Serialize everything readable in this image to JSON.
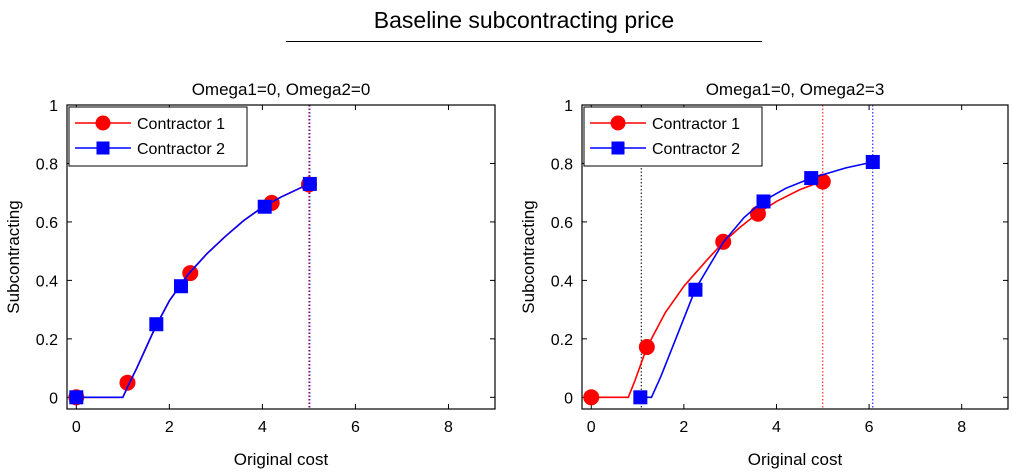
{
  "figure": {
    "title": "Baseline subcontracting price"
  },
  "colors": {
    "contractor_1": "#ff0000",
    "contractor_2": "#0000ff",
    "axes": "#000000"
  },
  "chart_data": [
    {
      "type": "line",
      "title": "Omega1=0, Omega2=0",
      "xlabel": "Original cost",
      "ylabel": "Subcontracting",
      "xlim": [
        -0.2,
        9
      ],
      "ylim": [
        -0.04,
        1
      ],
      "xticks": [
        0,
        2,
        4,
        6,
        8
      ],
      "yticks": [
        0,
        0.2,
        0.4,
        0.6,
        0.8,
        1
      ],
      "ytick_labels": [
        "0",
        "0.2",
        "0.4",
        "0.6",
        "0.8",
        "1"
      ],
      "grid": false,
      "legend_position": "top-left",
      "vlines": [
        {
          "x": 5.0,
          "color": "#ff0000"
        },
        {
          "x": 5.02,
          "color": "#0000ff"
        }
      ],
      "series": [
        {
          "name": "Contractor 1",
          "color": "#ff0000",
          "marker": "circle",
          "line": [
            [
              0,
              0
            ],
            [
              0.5,
              0
            ],
            [
              1.0,
              0
            ],
            [
              1.1,
              0.035
            ],
            [
              1.3,
              0.1
            ],
            [
              1.5,
              0.17
            ],
            [
              1.7,
              0.24
            ],
            [
              2.0,
              0.33
            ],
            [
              2.4,
              0.42
            ],
            [
              2.8,
              0.49
            ],
            [
              3.2,
              0.55
            ],
            [
              3.6,
              0.605
            ],
            [
              4.0,
              0.65
            ],
            [
              4.4,
              0.685
            ],
            [
              4.8,
              0.715
            ],
            [
              5.0,
              0.73
            ]
          ],
          "markers": [
            [
              0,
              0
            ],
            [
              1.1,
              0.05
            ],
            [
              2.45,
              0.425
            ],
            [
              4.2,
              0.665
            ],
            [
              5.0,
              0.728
            ]
          ]
        },
        {
          "name": "Contractor 2",
          "color": "#0000ff",
          "marker": "square",
          "line": [
            [
              0,
              0
            ],
            [
              0.5,
              0
            ],
            [
              1.0,
              0
            ],
            [
              1.1,
              0.035
            ],
            [
              1.3,
              0.1
            ],
            [
              1.5,
              0.17
            ],
            [
              1.7,
              0.24
            ],
            [
              2.0,
              0.33
            ],
            [
              2.4,
              0.42
            ],
            [
              2.8,
              0.49
            ],
            [
              3.2,
              0.55
            ],
            [
              3.6,
              0.605
            ],
            [
              4.0,
              0.65
            ],
            [
              4.4,
              0.685
            ],
            [
              4.8,
              0.715
            ],
            [
              5.0,
              0.73
            ]
          ],
          "markers": [
            [
              0,
              0
            ],
            [
              1.72,
              0.25
            ],
            [
              2.25,
              0.38
            ],
            [
              4.05,
              0.652
            ],
            [
              5.02,
              0.73
            ]
          ]
        }
      ]
    },
    {
      "type": "line",
      "title": "Omega1=0, Omega2=3",
      "xlabel": "Original cost",
      "ylabel": "Subcontracting",
      "xlim": [
        -0.2,
        9
      ],
      "ylim": [
        -0.04,
        1
      ],
      "xticks": [
        0,
        2,
        4,
        6,
        8
      ],
      "yticks": [
        0,
        0.2,
        0.4,
        0.6,
        0.8,
        1
      ],
      "ytick_labels": [
        "0",
        "0.2",
        "0.4",
        "0.6",
        "0.8",
        "1"
      ],
      "grid": false,
      "legend_position": "top-left",
      "vlines": [
        {
          "x": 1.08,
          "color": "#000000"
        },
        {
          "x": 5.0,
          "color": "#ff0000"
        },
        {
          "x": 6.08,
          "color": "#0000ff"
        }
      ],
      "series": [
        {
          "name": "Contractor 1",
          "color": "#ff0000",
          "marker": "circle",
          "line": [
            [
              0,
              0
            ],
            [
              0.5,
              0
            ],
            [
              0.8,
              0
            ],
            [
              0.95,
              0.06
            ],
            [
              1.2,
              0.17
            ],
            [
              1.6,
              0.29
            ],
            [
              2.0,
              0.38
            ],
            [
              2.5,
              0.47
            ],
            [
              2.85,
              0.53
            ],
            [
              3.2,
              0.58
            ],
            [
              3.6,
              0.63
            ],
            [
              4.0,
              0.67
            ],
            [
              4.5,
              0.71
            ],
            [
              5.0,
              0.74
            ]
          ],
          "markers": [
            [
              0,
              0
            ],
            [
              1.2,
              0.172
            ],
            [
              2.85,
              0.532
            ],
            [
              3.6,
              0.628
            ],
            [
              5.0,
              0.738
            ]
          ]
        },
        {
          "name": "Contractor 2",
          "color": "#0000ff",
          "marker": "square",
          "line": [
            [
              1.06,
              0
            ],
            [
              1.3,
              0
            ],
            [
              1.5,
              0.07
            ],
            [
              1.8,
              0.19
            ],
            [
              2.25,
              0.37
            ],
            [
              2.85,
              0.53
            ],
            [
              3.3,
              0.615
            ],
            [
              3.7,
              0.67
            ],
            [
              4.2,
              0.715
            ],
            [
              4.75,
              0.75
            ],
            [
              5.5,
              0.785
            ],
            [
              6.08,
              0.805
            ]
          ],
          "markers": [
            [
              1.06,
              0
            ],
            [
              2.25,
              0.368
            ],
            [
              3.72,
              0.67
            ],
            [
              4.75,
              0.75
            ],
            [
              6.08,
              0.805
            ]
          ]
        }
      ]
    }
  ]
}
